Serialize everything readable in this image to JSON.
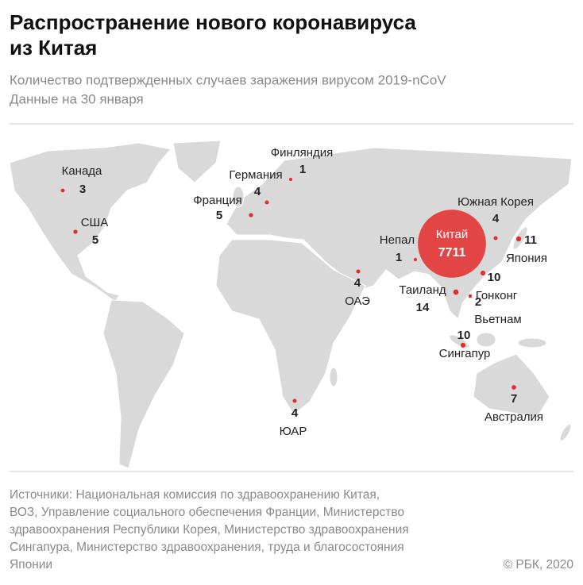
{
  "header": {
    "title": [
      "Распространение нового коронавируса",
      "из Китая"
    ],
    "subtitle": [
      "Количество подтвержденных случаев заражения вирусом 2019-nCoV",
      "Данные на 30 января"
    ]
  },
  "countries": [
    {
      "name": "Финляндия",
      "cases": 1
    },
    {
      "name": "Германия",
      "cases": 4
    },
    {
      "name": "Франция",
      "cases": 5
    },
    {
      "name": "Канада",
      "cases": 3
    },
    {
      "name": "США",
      "cases": 5
    },
    {
      "name": "ОАЭ",
      "cases": 4
    },
    {
      "name": "Непал",
      "cases": 1
    },
    {
      "name": "Китай",
      "cases": 7711
    },
    {
      "name": "Южная Корея",
      "cases": 4
    },
    {
      "name": "Япония",
      "cases": 11
    },
    {
      "name": "Таиланд",
      "cases": 14
    },
    {
      "name": "Гонконг",
      "cases": 10
    },
    {
      "name": "Вьетнам",
      "cases": 2
    },
    {
      "name": "Сингапур",
      "cases": 10
    },
    {
      "name": "Австралия",
      "cases": 7
    },
    {
      "name": "ЮАР",
      "cases": 4
    }
  ],
  "footer": {
    "sources": [
      "Источники: Национальная комиссия по здравоохранению Китая,",
      "ВОЗ, Управление социального обеспечения Франции, Министерство",
      "здравоохранения Республики Корея, Министерство здравоохранения",
      "Сингапура, Министерство здравоохранения, труда и благосостояния",
      "Японии"
    ],
    "copyright": "© РБК, 2020"
  }
}
